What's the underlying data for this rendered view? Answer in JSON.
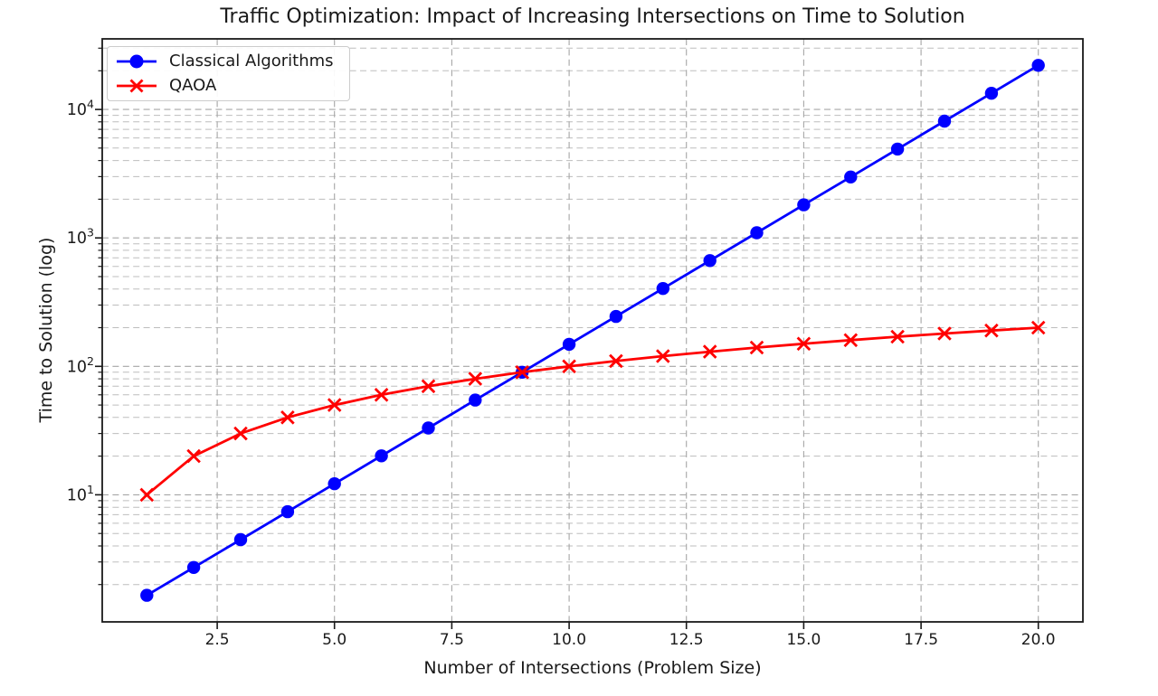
{
  "chart_data": {
    "type": "line",
    "title": "Traffic Optimization: Impact of Increasing Intersections on Time to Solution",
    "xlabel": "Number of Intersections (Problem Size)",
    "ylabel": "Time to Solution (log)",
    "x": [
      1,
      2,
      3,
      4,
      5,
      6,
      7,
      8,
      9,
      10,
      11,
      12,
      13,
      14,
      15,
      16,
      17,
      18,
      19,
      20
    ],
    "series": [
      {
        "name": "Classical Algorithms",
        "color": "#0000ff",
        "marker": "circle",
        "values": [
          1.65,
          2.72,
          4.48,
          7.39,
          12.18,
          20.09,
          33.12,
          54.6,
          90.02,
          148.41,
          244.69,
          403.43,
          665.14,
          1096.63,
          1808.04,
          2980.96,
          4914.77,
          8103.08,
          13359.73,
          22026.47
        ]
      },
      {
        "name": "QAOA",
        "color": "#ff0000",
        "marker": "x",
        "values": [
          10,
          20,
          30,
          40,
          50,
          60,
          70,
          80,
          90,
          100,
          110,
          120,
          130,
          140,
          150,
          160,
          170,
          180,
          190,
          200
        ]
      }
    ],
    "axes": {
      "yscale": "log",
      "xlim": [
        0.05,
        20.95
      ],
      "ylim": [
        1.025,
        35420
      ],
      "xticks": [
        2.5,
        5.0,
        7.5,
        10.0,
        12.5,
        15.0,
        17.5,
        20.0
      ],
      "xtick_labels": [
        "2.5",
        "5.0",
        "7.5",
        "10.0",
        "12.5",
        "15.0",
        "17.5",
        "20.0"
      ],
      "yticks": [
        10,
        100,
        1000,
        10000
      ],
      "ytick_labels": [
        "10^1",
        "10^2",
        "10^3",
        "10^4"
      ],
      "grid": {
        "visible": true,
        "which": "major-and-minor-y",
        "linestyle": "dashed",
        "color": "#b0b0b0"
      },
      "legend_position": "upper-left",
      "spine_color": "#1a1a1a"
    }
  }
}
